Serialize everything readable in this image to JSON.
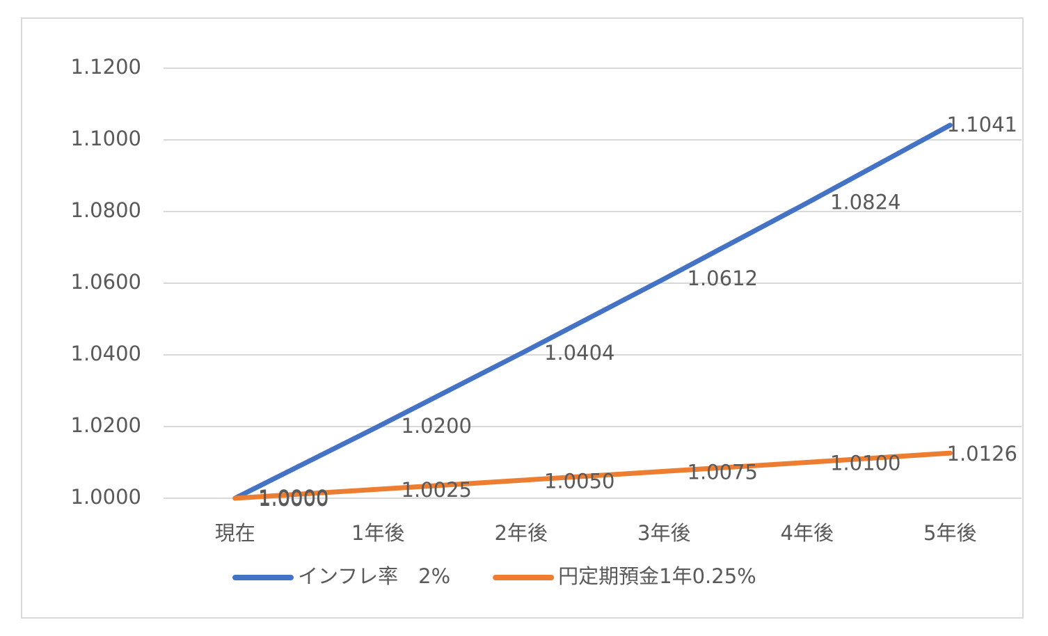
{
  "chart_data": {
    "type": "line",
    "categories": [
      "現在",
      "1年後",
      "2年後",
      "3年後",
      "4年後",
      "5年後"
    ],
    "series": [
      {
        "name": "インフレ率　2%",
        "color": "#4472c4",
        "values": [
          1.0,
          1.02,
          1.0404,
          1.0612,
          1.0824,
          1.1041
        ],
        "value_labels": [
          "1.0000",
          "1.0200",
          "1.0404",
          "1.0612",
          "1.0824",
          "1.1041"
        ]
      },
      {
        "name": "円定期預金1年0.25%",
        "color": "#ed7d31",
        "values": [
          1.0,
          1.0025,
          1.005,
          1.0075,
          1.01,
          1.0126
        ],
        "value_labels": [
          "1.0000",
          "1.0025",
          "1.0050",
          "1.0075",
          "1.0100",
          "1.0126"
        ]
      }
    ],
    "ylim": [
      1.0,
      1.12
    ],
    "yticks": [
      {
        "value": 1.0,
        "label": "1.0000"
      },
      {
        "value": 1.02,
        "label": "1.0200"
      },
      {
        "value": 1.04,
        "label": "1.0400"
      },
      {
        "value": 1.06,
        "label": "1.0600"
      },
      {
        "value": 1.08,
        "label": "1.0800"
      },
      {
        "value": 1.1,
        "label": "1.1000"
      },
      {
        "value": 1.12,
        "label": "1.1200"
      }
    ],
    "grid": true,
    "legend": "bottom"
  }
}
